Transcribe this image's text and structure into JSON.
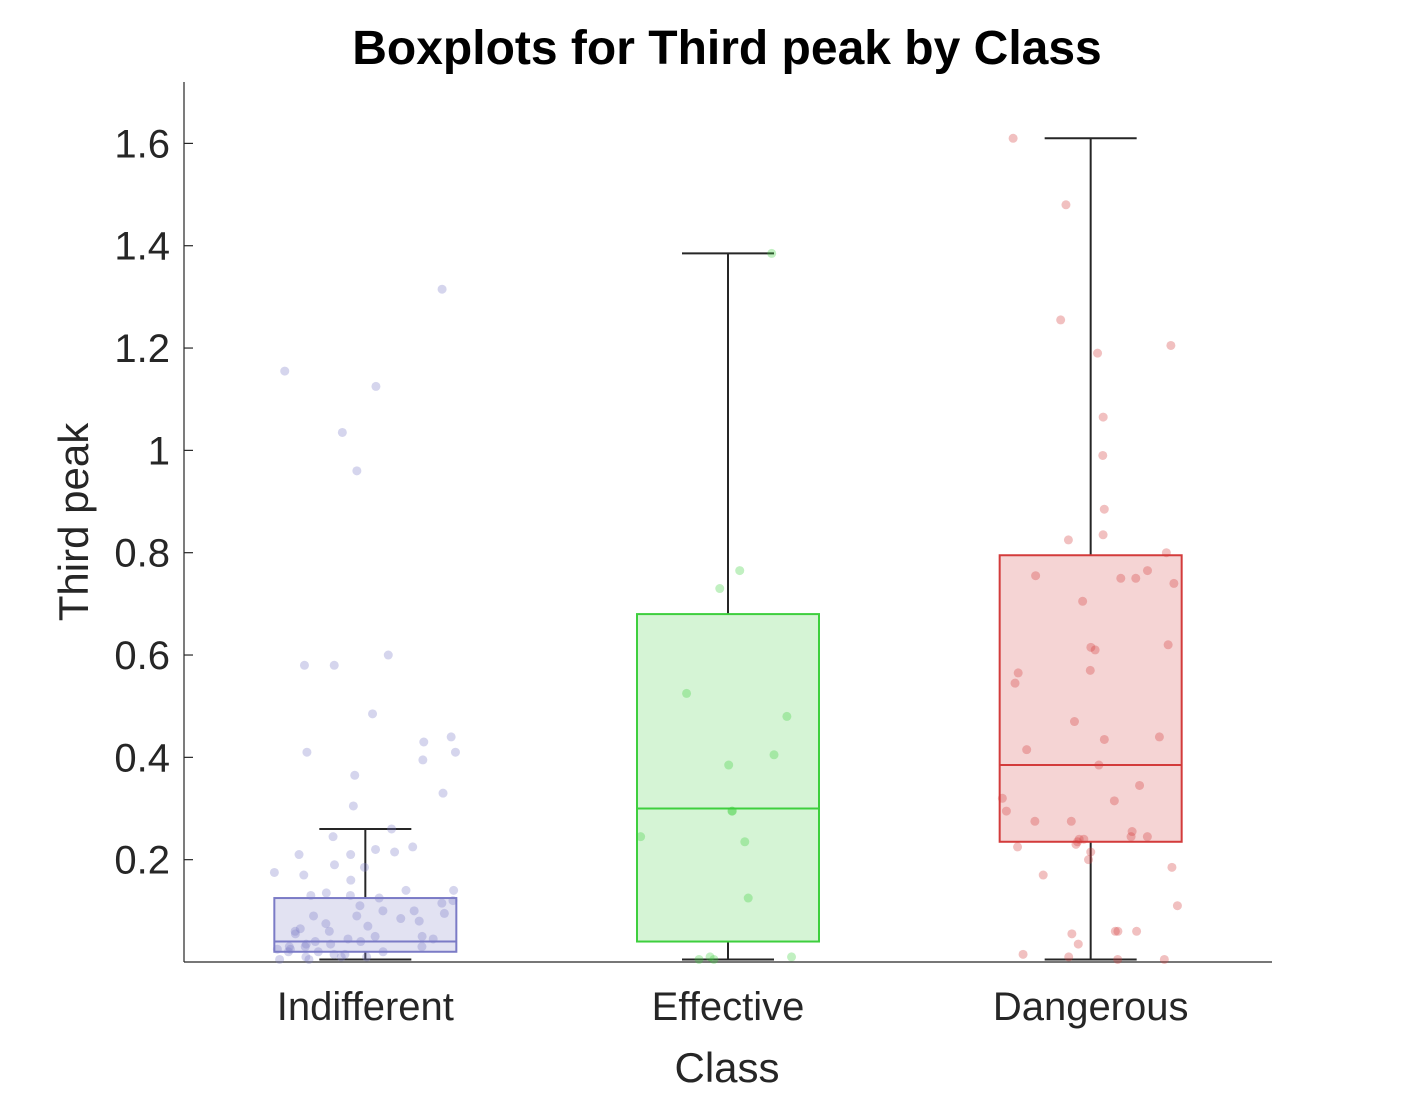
{
  "chart_data": {
    "type": "boxplot",
    "title": "Boxplots for Third peak by Class",
    "xlabel": "Class",
    "ylabel": "Third peak",
    "ylim": [
      0.0,
      1.72
    ],
    "yticks": [
      0.2,
      0.4,
      0.6,
      0.8,
      1,
      1.2,
      1.4,
      1.6
    ],
    "ytick_labels": [
      "0.2",
      "0.4",
      "0.6",
      "0.8",
      "1",
      "1.2",
      "1.4",
      "1.6"
    ],
    "grid": false,
    "categories": [
      "Indifferent",
      "Effective",
      "Dangerous"
    ],
    "boxes": [
      {
        "category": "Indifferent",
        "color": "#7b7bc6",
        "whisker_low": 0.005,
        "q1": 0.02,
        "median": 0.04,
        "q3": 0.125,
        "whisker_high": 0.26,
        "points": [
          1.315,
          1.155,
          1.125,
          1.035,
          0.96,
          0.6,
          0.58,
          0.58,
          0.485,
          0.44,
          0.43,
          0.41,
          0.41,
          0.395,
          0.365,
          0.33,
          0.305,
          0.26,
          0.245,
          0.225,
          0.22,
          0.215,
          0.21,
          0.21,
          0.19,
          0.185,
          0.175,
          0.17,
          0.16,
          0.14,
          0.14,
          0.135,
          0.13,
          0.13,
          0.125,
          0.12,
          0.115,
          0.11,
          0.1,
          0.1,
          0.095,
          0.09,
          0.09,
          0.085,
          0.08,
          0.075,
          0.07,
          0.065,
          0.06,
          0.06,
          0.055,
          0.05,
          0.05,
          0.045,
          0.045,
          0.04,
          0.04,
          0.035,
          0.035,
          0.03,
          0.03,
          0.03,
          0.025,
          0.025,
          0.02,
          0.02,
          0.02,
          0.015,
          0.015,
          0.01,
          0.01,
          0.01,
          0.005,
          0.005
        ]
      },
      {
        "category": "Effective",
        "color": "#3ecf3e",
        "whisker_low": 0.005,
        "q1": 0.04,
        "median": 0.3,
        "q3": 0.68,
        "whisker_high": 1.385,
        "points": [
          1.385,
          0.765,
          0.73,
          0.525,
          0.48,
          0.405,
          0.385,
          0.295,
          0.295,
          0.245,
          0.235,
          0.125,
          0.01,
          0.01,
          0.005,
          0.005
        ]
      },
      {
        "category": "Dangerous",
        "color": "#d33b3b",
        "whisker_low": 0.005,
        "q1": 0.235,
        "median": 0.385,
        "q3": 0.795,
        "whisker_high": 1.61,
        "points": [
          1.61,
          1.48,
          1.255,
          1.205,
          1.19,
          1.065,
          0.99,
          0.885,
          0.835,
          0.825,
          0.8,
          0.765,
          0.755,
          0.75,
          0.75,
          0.74,
          0.705,
          0.62,
          0.615,
          0.61,
          0.57,
          0.565,
          0.545,
          0.47,
          0.44,
          0.435,
          0.415,
          0.385,
          0.345,
          0.32,
          0.315,
          0.295,
          0.275,
          0.275,
          0.255,
          0.245,
          0.245,
          0.24,
          0.24,
          0.235,
          0.23,
          0.225,
          0.215,
          0.2,
          0.185,
          0.17,
          0.11,
          0.06,
          0.06,
          0.06,
          0.055,
          0.035,
          0.015,
          0.01,
          0.005,
          0.005
        ]
      }
    ]
  }
}
